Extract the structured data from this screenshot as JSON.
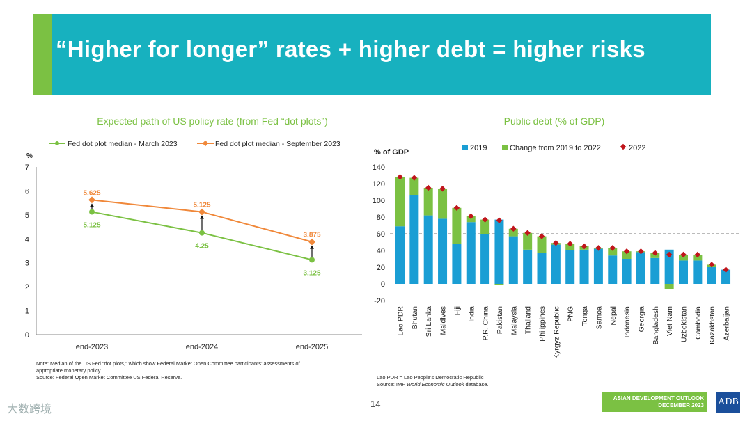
{
  "page": {
    "title": "“Higher for longer” rates + higher debt = higher risks",
    "page_number": "14",
    "footer_line1": "ASIAN DEVELOPMENT OUTLOOK",
    "footer_line2": "DECEMBER 2023",
    "logo_text": "ADB",
    "watermark": "大数跨境",
    "colors": {
      "teal": "#17b1bf",
      "green": "#7bc143",
      "orange": "#f0883a",
      "blue": "#1a9ed4",
      "red": "#c0151b"
    }
  },
  "notes": {
    "left_line1": "Note: Median of the US Fed “dot plots,” which show Federal Market Open Committee participants’ assessments of",
    "left_line2": "appropriate monetary policy.",
    "left_line3": "Source: Federal Open Market Committee US Federal Reserve.",
    "right_line1": "Lao PDR = Lao People’s Democratic Republic",
    "right_line2_prefix": "Source: IMF ",
    "right_line2_italic": "World Economic Outlook",
    "right_line2_suffix": " database."
  },
  "chart_data": [
    {
      "type": "line",
      "title": "Expected path of US policy rate (from Fed “dot plots”)",
      "ylabel": "%",
      "ylim": [
        0,
        7
      ],
      "yticks": [
        "0",
        "1",
        "2",
        "3",
        "4",
        "5",
        "6",
        "7"
      ],
      "categories": [
        "end-2023",
        "end-2024",
        "end-2025"
      ],
      "series": [
        {
          "name": "Fed dot plot median - March 2023",
          "values": [
            5.125,
            4.25,
            3.125
          ],
          "labels": [
            "5.125",
            "4.25",
            "3.125"
          ]
        },
        {
          "name": "Fed dot plot median - September 2023",
          "values": [
            5.625,
            5.125,
            3.875
          ],
          "labels": [
            "5.625",
            "5.125",
            "3.875"
          ]
        }
      ]
    },
    {
      "type": "bar",
      "title": "Public debt (% of GDP)",
      "ylabel": "% of GDP",
      "ylim": [
        -20,
        140
      ],
      "yticks": [
        "-20",
        "0",
        "20",
        "40",
        "60",
        "80",
        "100",
        "120",
        "140"
      ],
      "reference_line": 60,
      "legend": [
        "2019",
        "Change from 2019 to 2022",
        "2022"
      ],
      "categories": [
        "Lao PDR",
        "Bhutan",
        "Sri Lanka",
        "Maldives",
        "Fiji",
        "India",
        "P.R. China",
        "Pakistan",
        "Malaysia",
        "Thailand",
        "Philippines",
        "Kyrgyz Republic",
        "PNG",
        "Tonga",
        "Samoa",
        "Nepal",
        "Indonesia",
        "Georgia",
        "Bangladesh",
        "Viet Nam",
        "Uzbekistan",
        "Cambodia",
        "Kazakhstan",
        "Azerbaijan"
      ],
      "series": [
        {
          "name": "2019",
          "values": [
            69,
            106,
            82,
            78,
            48,
            74,
            60,
            77,
            57,
            41,
            37,
            47,
            40,
            41,
            42,
            34,
            30,
            38,
            31,
            41,
            28,
            28,
            20,
            17
          ]
        },
        {
          "name": "Change from 2019 to 2022",
          "values": [
            59,
            21,
            33,
            36,
            43,
            7,
            17,
            -1,
            9,
            20,
            20,
            2,
            8,
            4,
            1,
            9,
            9,
            1,
            6,
            -6,
            7,
            7,
            3,
            0
          ]
        },
        {
          "name": "2022",
          "values": [
            128,
            127,
            115,
            114,
            91,
            81,
            77,
            76,
            66,
            61,
            57,
            49,
            48,
            45,
            43,
            43,
            39,
            39,
            37,
            35,
            35,
            35,
            23,
            17
          ]
        }
      ]
    }
  ]
}
